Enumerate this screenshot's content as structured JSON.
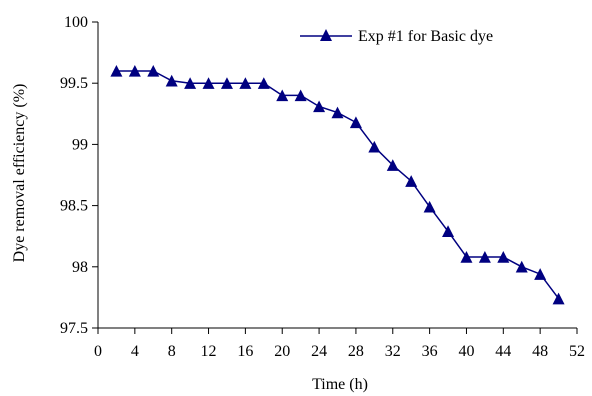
{
  "chart_data": {
    "type": "line",
    "title": "",
    "xlabel": "Time (h)",
    "ylabel": "Dye removal efficiency (%)",
    "xlim": [
      0,
      52
    ],
    "ylim": [
      97.5,
      100
    ],
    "x_ticks": [
      "0",
      "4",
      "8",
      "12",
      "16",
      "20",
      "24",
      "28",
      "32",
      "36",
      "40",
      "44",
      "48",
      "52"
    ],
    "y_ticks": [
      "97.5",
      "98",
      "98.5",
      "99",
      "99.5",
      "100"
    ],
    "grid": false,
    "legend_position": "top-right",
    "series": [
      {
        "name": "Exp #1 for Basic dye",
        "color": "#000080",
        "marker": "triangle",
        "x": [
          2,
          4,
          6,
          8,
          10,
          12,
          14,
          16,
          18,
          20,
          22,
          24,
          26,
          28,
          30,
          32,
          34,
          36,
          38,
          40,
          42,
          44,
          46,
          48,
          50
        ],
        "y": [
          99.6,
          99.6,
          99.6,
          99.52,
          99.5,
          99.5,
          99.5,
          99.5,
          99.5,
          99.4,
          99.4,
          99.31,
          99.26,
          99.18,
          98.98,
          98.83,
          98.7,
          98.49,
          98.29,
          98.08,
          98.08,
          98.08,
          98.0,
          97.94,
          97.74
        ]
      }
    ]
  }
}
